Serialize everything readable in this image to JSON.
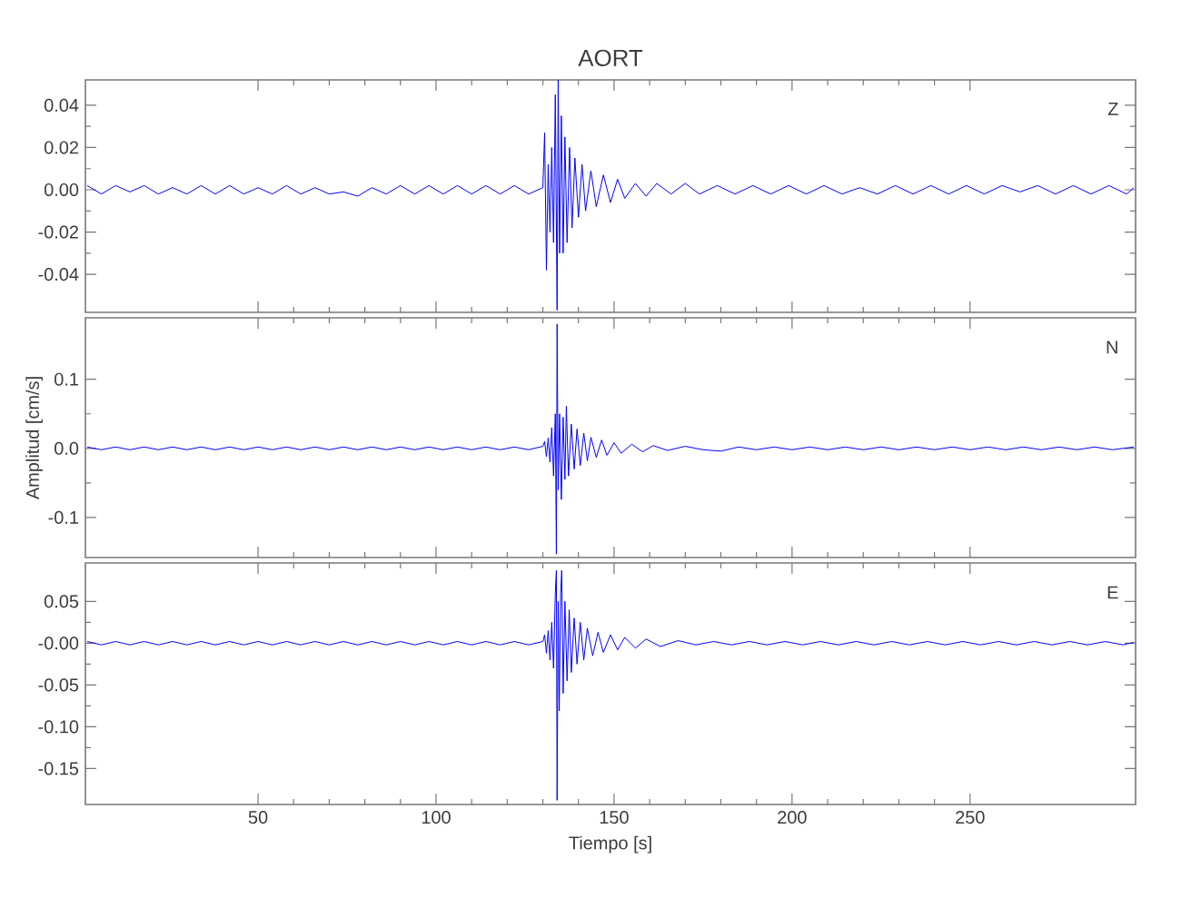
{
  "chart_data": [
    {
      "type": "line",
      "title": "AORT",
      "annotations": [
        "Z"
      ],
      "xlim": [
        1.5,
        296.5
      ],
      "ylim": [
        -0.058,
        0.052
      ],
      "xticks": [
        50,
        100,
        150,
        200,
        250
      ],
      "yticks": [
        {
          "value": -0.04,
          "label": "-0.04"
        },
        {
          "value": -0.02,
          "label": "-0.02"
        },
        {
          "value": 0,
          "label": "0.00"
        },
        {
          "value": 0.02,
          "label": "0.02"
        },
        {
          "value": 0.04,
          "label": "0.04"
        }
      ],
      "tick_labels": "y",
      "grid": false,
      "marker": "none",
      "line_style": "solid",
      "series": [
        {
          "color": "#0000ff",
          "x": [
            2,
            6,
            10,
            14,
            18,
            22,
            26,
            30,
            34,
            38,
            42,
            46,
            50,
            54,
            58,
            62,
            66,
            70,
            74,
            78,
            82,
            86,
            90,
            94,
            98,
            102,
            106,
            110,
            114,
            118,
            122,
            126,
            130,
            130.5,
            131,
            131.5,
            132,
            132.5,
            133,
            133.5,
            134,
            134.3,
            134.7,
            135.2,
            135.7,
            136.2,
            136.8,
            137.5,
            138.2,
            139,
            140,
            141,
            142,
            143.5,
            145,
            147,
            149,
            151,
            153,
            156,
            159,
            162,
            166,
            170,
            174,
            179,
            184,
            189,
            194,
            199,
            204,
            209,
            214,
            219,
            224,
            229,
            234,
            239,
            244,
            249,
            254,
            259,
            264,
            269,
            274,
            279,
            284,
            289,
            294,
            296
          ],
          "values": [
            0.002,
            -0.002,
            0.002,
            -0.001,
            0.002,
            -0.002,
            0.001,
            -0.002,
            0.002,
            -0.002,
            0.002,
            -0.002,
            0.001,
            -0.002,
            0.002,
            -0.002,
            0.001,
            -0.002,
            -0.001,
            -0.003,
            0.001,
            -0.002,
            0.002,
            -0.002,
            0.002,
            -0.002,
            0.002,
            -0.002,
            0.002,
            -0.002,
            0.002,
            -0.002,
            0.001,
            0.027,
            -0.038,
            0.012,
            -0.02,
            0.02,
            -0.025,
            0.045,
            -0.057,
            0.052,
            -0.03,
            0.035,
            -0.03,
            0.025,
            -0.025,
            0.02,
            -0.018,
            0.015,
            -0.013,
            0.012,
            -0.01,
            0.009,
            -0.008,
            0.007,
            -0.006,
            0.005,
            -0.004,
            0.003,
            -0.003,
            0.003,
            -0.002,
            0.003,
            -0.002,
            0.002,
            -0.002,
            0.002,
            -0.002,
            0.002,
            -0.002,
            0.002,
            -0.002,
            0.001,
            -0.002,
            0.002,
            -0.002,
            0.002,
            -0.002,
            0.002,
            -0.002,
            0.002,
            -0.001,
            0.002,
            -0.002,
            0.002,
            -0.002,
            0.002,
            -0.002,
            0.001
          ]
        }
      ]
    },
    {
      "type": "line",
      "ylabel": "Amplitud  [cm/s]",
      "annotations": [
        "N"
      ],
      "xlim": [
        1.5,
        296.5
      ],
      "ylim": [
        -0.158,
        0.189
      ],
      "xticks": [
        50,
        100,
        150,
        200,
        250
      ],
      "yticks": [
        {
          "value": -0.1,
          "label": "-0.1"
        },
        {
          "value": 0,
          "label": "0.0"
        },
        {
          "value": 0.1,
          "label": "0.1"
        }
      ],
      "tick_labels": "y",
      "grid": false,
      "marker": "none",
      "line_style": "solid",
      "series": [
        {
          "color": "#0000ff",
          "x": [
            2,
            6,
            10,
            14,
            18,
            22,
            26,
            30,
            34,
            38,
            42,
            46,
            50,
            54,
            58,
            62,
            66,
            70,
            74,
            78,
            82,
            86,
            90,
            94,
            98,
            102,
            106,
            110,
            114,
            118,
            122,
            126,
            130,
            130.5,
            131,
            131.5,
            132,
            132.5,
            133,
            133.5,
            133.8,
            134,
            134.3,
            134.7,
            135.2,
            135.7,
            136.2,
            136.6,
            137.2,
            138,
            138.8,
            139.6,
            140.5,
            141.5,
            142.5,
            143.5,
            145,
            146.5,
            148,
            150,
            152,
            155,
            158,
            161,
            165,
            170,
            175,
            180,
            185,
            190,
            195,
            200,
            205,
            210,
            215,
            220,
            225,
            230,
            235,
            240,
            245,
            250,
            255,
            260,
            265,
            270,
            275,
            280,
            285,
            290,
            296
          ],
          "values": [
            0.002,
            -0.002,
            0.002,
            -0.002,
            0.002,
            -0.002,
            0.002,
            -0.002,
            0.002,
            -0.002,
            0.002,
            -0.002,
            0.002,
            -0.002,
            0.002,
            -0.002,
            0.002,
            -0.002,
            0.002,
            -0.002,
            0.002,
            -0.002,
            0.002,
            -0.002,
            0.002,
            -0.002,
            0.002,
            -0.002,
            0.002,
            -0.002,
            0.002,
            -0.002,
            0.003,
            0.01,
            -0.012,
            0.015,
            -0.02,
            0.03,
            -0.04,
            0.05,
            -0.153,
            0.18,
            -0.06,
            0.05,
            -0.074,
            0.045,
            -0.045,
            0.061,
            -0.04,
            0.035,
            -0.03,
            0.028,
            -0.025,
            0.022,
            -0.018,
            0.016,
            -0.013,
            0.012,
            -0.01,
            0.008,
            -0.007,
            0.006,
            -0.005,
            0.004,
            -0.003,
            0.003,
            -0.002,
            -0.004,
            0.002,
            -0.002,
            0.002,
            -0.002,
            0.002,
            -0.002,
            0.002,
            -0.002,
            0.002,
            -0.002,
            0.002,
            -0.002,
            0.002,
            -0.002,
            0.002,
            -0.002,
            0.002,
            -0.002,
            0.002,
            -0.002,
            0.002,
            -0.002,
            0.002
          ]
        }
      ]
    },
    {
      "type": "line",
      "xlabel": "Tiempo  [s]",
      "annotations": [
        "E"
      ],
      "xlim": [
        1.5,
        296.5
      ],
      "ylim": [
        -0.193,
        0.096
      ],
      "xticks": [
        50,
        100,
        150,
        200,
        250
      ],
      "yticks": [
        {
          "value": -0.15,
          "label": "-0.15"
        },
        {
          "value": -0.1,
          "label": "-0.10"
        },
        {
          "value": -0.05,
          "label": "-0.05"
        },
        {
          "value": 0,
          "label": "-0.00"
        },
        {
          "value": 0.05,
          "label": "0.05"
        }
      ],
      "grid": false,
      "marker": "none",
      "line_style": "solid",
      "series": [
        {
          "color": "#0000ff",
          "x": [
            2,
            6,
            10,
            14,
            18,
            22,
            26,
            30,
            34,
            38,
            42,
            46,
            50,
            54,
            58,
            62,
            66,
            70,
            74,
            78,
            82,
            86,
            90,
            94,
            98,
            102,
            106,
            110,
            114,
            118,
            122,
            126,
            130,
            130.5,
            131,
            131.5,
            132,
            132.5,
            133,
            133.5,
            133.8,
            134,
            134.3,
            134.6,
            135,
            135.3,
            135.7,
            136.2,
            136.8,
            137.4,
            138,
            138.8,
            139.6,
            140.5,
            141.5,
            142.5,
            144,
            145.5,
            147,
            149,
            151,
            153,
            156,
            159,
            163,
            168,
            173,
            178,
            183,
            188,
            193,
            198,
            203,
            208,
            213,
            218,
            223,
            228,
            233,
            238,
            243,
            248,
            253,
            258,
            263,
            268,
            273,
            278,
            283,
            288,
            293,
            296
          ],
          "values": [
            0.002,
            -0.002,
            0.002,
            -0.002,
            0.002,
            -0.002,
            0.002,
            -0.002,
            0.002,
            -0.002,
            0.002,
            -0.002,
            0.002,
            -0.002,
            0.002,
            -0.002,
            0.002,
            -0.002,
            0.002,
            -0.002,
            0.002,
            -0.002,
            0.002,
            -0.002,
            0.002,
            -0.002,
            0.002,
            -0.002,
            0.002,
            -0.002,
            0.002,
            -0.002,
            0.002,
            0.01,
            -0.012,
            0.015,
            -0.02,
            0.025,
            -0.03,
            0.06,
            0.087,
            -0.188,
            0.05,
            -0.081,
            0.06,
            0.087,
            -0.06,
            0.05,
            -0.045,
            0.04,
            -0.035,
            0.03,
            -0.025,
            0.025,
            -0.02,
            0.018,
            -0.015,
            0.013,
            -0.011,
            0.01,
            -0.008,
            0.007,
            -0.006,
            0.005,
            -0.004,
            0.003,
            -0.002,
            0.002,
            -0.002,
            0.002,
            -0.002,
            0.002,
            -0.002,
            0.002,
            -0.002,
            0.002,
            -0.002,
            0.002,
            -0.002,
            0.002,
            -0.002,
            0.002,
            -0.002,
            0.002,
            -0.002,
            0.002,
            -0.002,
            0.002,
            -0.002,
            0.002,
            -0.002,
            0.001
          ]
        }
      ]
    }
  ]
}
